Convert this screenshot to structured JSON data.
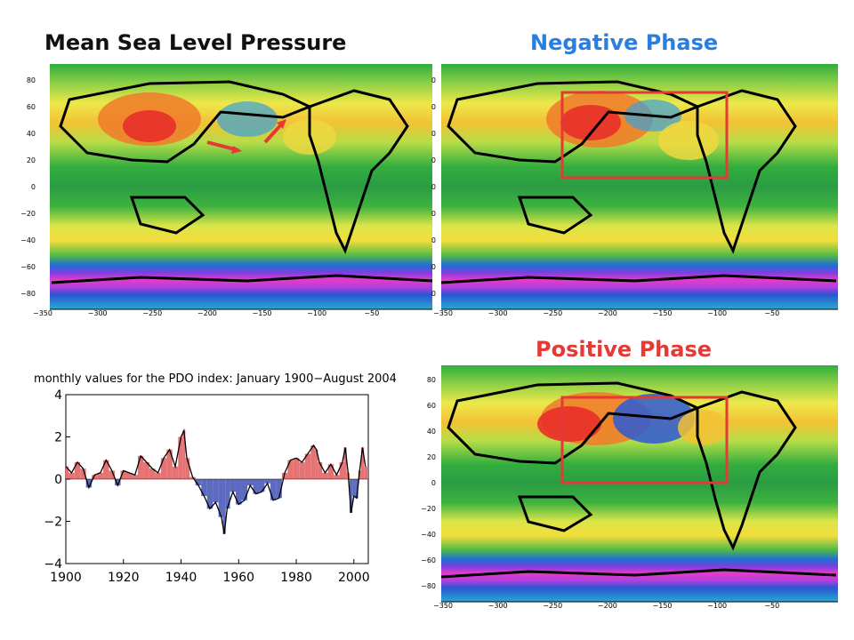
{
  "titles": {
    "main": "Mean Sea Level Pressure",
    "negative": "Negative Phase",
    "positive": "Positive Phase"
  },
  "colors": {
    "negative_title": "#2a7de1",
    "positive_title": "#e53935",
    "highlight_box": "#e53935",
    "pdo_positive_fill": "#e57373",
    "pdo_negative_fill": "#5c6bc0"
  },
  "maps": {
    "lon_ticks": [
      "−350",
      "−300",
      "−250",
      "−200",
      "−150",
      "−100",
      "−50"
    ],
    "lat_ticks": [
      "80",
      "60",
      "40",
      "20",
      "0",
      "−20",
      "−40",
      "−60",
      "−80"
    ],
    "negative_lat_ticks": [
      "0",
      "0",
      "0",
      "0",
      "0",
      "0",
      "0",
      "0",
      "0"
    ],
    "positive_lat_ticks": [
      "80",
      "60",
      "40",
      "20",
      "0",
      "−20",
      "−40",
      "−60",
      "−80"
    ]
  },
  "chart_data": {
    "type": "area",
    "title": "monthly values for the PDO index: January 1900−August 2004",
    "xlabel": "",
    "ylabel": "",
    "xlim": [
      1900,
      2005
    ],
    "ylim": [
      -4,
      4
    ],
    "x_ticks": [
      "1900",
      "1920",
      "1940",
      "1960",
      "1980",
      "2000"
    ],
    "y_ticks": [
      "4",
      "2",
      "0",
      "−2",
      "−4"
    ],
    "x": [
      1900,
      1902,
      1904,
      1906,
      1908,
      1910,
      1912,
      1914,
      1916,
      1918,
      1920,
      1922,
      1924,
      1926,
      1928,
      1930,
      1932,
      1934,
      1936,
      1938,
      1940,
      1941,
      1942,
      1944,
      1946,
      1948,
      1950,
      1952,
      1954,
      1955,
      1956,
      1958,
      1960,
      1962,
      1964,
      1966,
      1968,
      1970,
      1972,
      1974,
      1976,
      1978,
      1980,
      1982,
      1984,
      1986,
      1987,
      1988,
      1990,
      1992,
      1994,
      1996,
      1997,
      1998,
      1999,
      2000,
      2001,
      2002,
      2003,
      2004
    ],
    "values": [
      0.6,
      0.3,
      0.8,
      0.5,
      -0.4,
      0.2,
      0.3,
      0.9,
      0.4,
      -0.3,
      0.4,
      0.3,
      0.2,
      1.1,
      0.8,
      0.5,
      0.3,
      1.0,
      1.4,
      0.6,
      2.0,
      2.3,
      1.0,
      0.1,
      -0.3,
      -0.8,
      -1.4,
      -1.1,
      -1.8,
      -2.6,
      -1.4,
      -0.6,
      -1.2,
      -1.0,
      -0.3,
      -0.7,
      -0.6,
      -0.2,
      -1.0,
      -0.9,
      0.3,
      0.9,
      1.0,
      0.8,
      1.2,
      1.6,
      1.4,
      0.8,
      0.3,
      0.7,
      0.2,
      0.8,
      1.5,
      0.3,
      -1.6,
      -0.8,
      -0.9,
      0.4,
      1.5,
      0.6
    ]
  }
}
